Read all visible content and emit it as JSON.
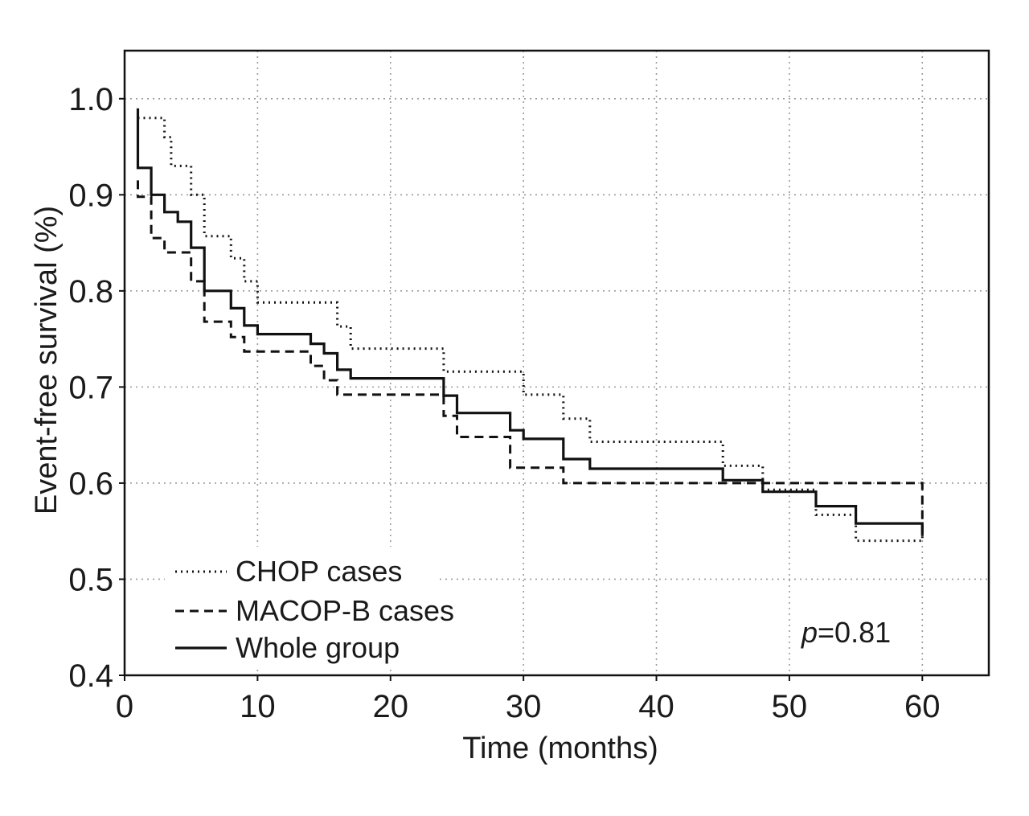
{
  "chart_data": {
    "type": "line",
    "title": "",
    "xlabel": "Time (months)",
    "ylabel": "Event-free survival (%)",
    "xlim": [
      0,
      65
    ],
    "ylim": [
      0.4,
      1.05
    ],
    "xticks": [
      0,
      10,
      20,
      30,
      40,
      50,
      60
    ],
    "xtick_labels": [
      "0",
      "10",
      "20",
      "30",
      "40",
      "50",
      "60"
    ],
    "yticks": [
      0.4,
      0.5,
      0.6,
      0.7,
      0.8,
      0.9,
      1.0
    ],
    "ytick_labels": [
      "0.4",
      "0.5",
      "0.6",
      "0.7",
      "0.8",
      "0.9",
      "1.0"
    ],
    "grid": true,
    "legend_position": "bottom-left",
    "annotation": {
      "prefix": "p",
      "text": "=0.81"
    },
    "series": [
      {
        "name": "CHOP cases",
        "style": "dotted",
        "points": [
          [
            1,
            0.98
          ],
          [
            3,
            0.98
          ],
          [
            3,
            0.96
          ],
          [
            3.5,
            0.96
          ],
          [
            3.5,
            0.93
          ],
          [
            5,
            0.93
          ],
          [
            5,
            0.9
          ],
          [
            6,
            0.9
          ],
          [
            6,
            0.857
          ],
          [
            8,
            0.857
          ],
          [
            8,
            0.834
          ],
          [
            9,
            0.834
          ],
          [
            9,
            0.81
          ],
          [
            10,
            0.81
          ],
          [
            10,
            0.788
          ],
          [
            16,
            0.788
          ],
          [
            16,
            0.763
          ],
          [
            17,
            0.763
          ],
          [
            17,
            0.74
          ],
          [
            24,
            0.74
          ],
          [
            24,
            0.716
          ],
          [
            30,
            0.716
          ],
          [
            30,
            0.692
          ],
          [
            33,
            0.692
          ],
          [
            33,
            0.667
          ],
          [
            35,
            0.667
          ],
          [
            35,
            0.643
          ],
          [
            45,
            0.643
          ],
          [
            45,
            0.618
          ],
          [
            48,
            0.618
          ],
          [
            48,
            0.593
          ],
          [
            52,
            0.593
          ],
          [
            52,
            0.567
          ],
          [
            55,
            0.567
          ],
          [
            55,
            0.54
          ],
          [
            60,
            0.54
          ],
          [
            60,
            0.545
          ]
        ]
      },
      {
        "name": "MACOP-B cases",
        "style": "dashed",
        "points": [
          [
            1,
            0.915
          ],
          [
            1,
            0.898
          ],
          [
            2,
            0.898
          ],
          [
            2,
            0.855
          ],
          [
            3,
            0.855
          ],
          [
            3,
            0.84
          ],
          [
            5,
            0.84
          ],
          [
            5,
            0.81
          ],
          [
            6,
            0.81
          ],
          [
            6,
            0.768
          ],
          [
            8,
            0.768
          ],
          [
            8,
            0.752
          ],
          [
            9,
            0.752
          ],
          [
            9,
            0.737
          ],
          [
            14,
            0.737
          ],
          [
            14,
            0.722
          ],
          [
            15,
            0.722
          ],
          [
            15,
            0.707
          ],
          [
            16,
            0.707
          ],
          [
            16,
            0.692
          ],
          [
            24,
            0.692
          ],
          [
            24,
            0.67
          ],
          [
            25,
            0.67
          ],
          [
            25,
            0.648
          ],
          [
            29,
            0.648
          ],
          [
            29,
            0.616
          ],
          [
            33,
            0.616
          ],
          [
            33,
            0.6
          ],
          [
            60,
            0.6
          ],
          [
            60,
            0.548
          ]
        ]
      },
      {
        "name": "Whole group",
        "style": "solid",
        "points": [
          [
            1,
            0.99
          ],
          [
            1,
            0.928
          ],
          [
            2,
            0.928
          ],
          [
            2,
            0.9
          ],
          [
            3,
            0.9
          ],
          [
            3,
            0.882
          ],
          [
            4,
            0.882
          ],
          [
            4,
            0.872
          ],
          [
            5,
            0.872
          ],
          [
            5,
            0.845
          ],
          [
            6,
            0.845
          ],
          [
            6,
            0.8
          ],
          [
            8,
            0.8
          ],
          [
            8,
            0.782
          ],
          [
            9,
            0.782
          ],
          [
            9,
            0.764
          ],
          [
            10,
            0.764
          ],
          [
            10,
            0.755
          ],
          [
            14,
            0.755
          ],
          [
            14,
            0.745
          ],
          [
            15,
            0.745
          ],
          [
            15,
            0.735
          ],
          [
            16,
            0.735
          ],
          [
            16,
            0.718
          ],
          [
            17,
            0.718
          ],
          [
            17,
            0.709
          ],
          [
            24,
            0.709
          ],
          [
            24,
            0.691
          ],
          [
            25,
            0.691
          ],
          [
            25,
            0.673
          ],
          [
            29,
            0.673
          ],
          [
            29,
            0.655
          ],
          [
            30,
            0.655
          ],
          [
            30,
            0.646
          ],
          [
            33,
            0.646
          ],
          [
            33,
            0.625
          ],
          [
            35,
            0.625
          ],
          [
            35,
            0.615
          ],
          [
            45,
            0.615
          ],
          [
            45,
            0.603
          ],
          [
            48,
            0.603
          ],
          [
            48,
            0.591
          ],
          [
            52,
            0.591
          ],
          [
            52,
            0.576
          ],
          [
            55,
            0.576
          ],
          [
            55,
            0.558
          ],
          [
            60,
            0.558
          ],
          [
            60,
            0.545
          ]
        ]
      }
    ]
  }
}
